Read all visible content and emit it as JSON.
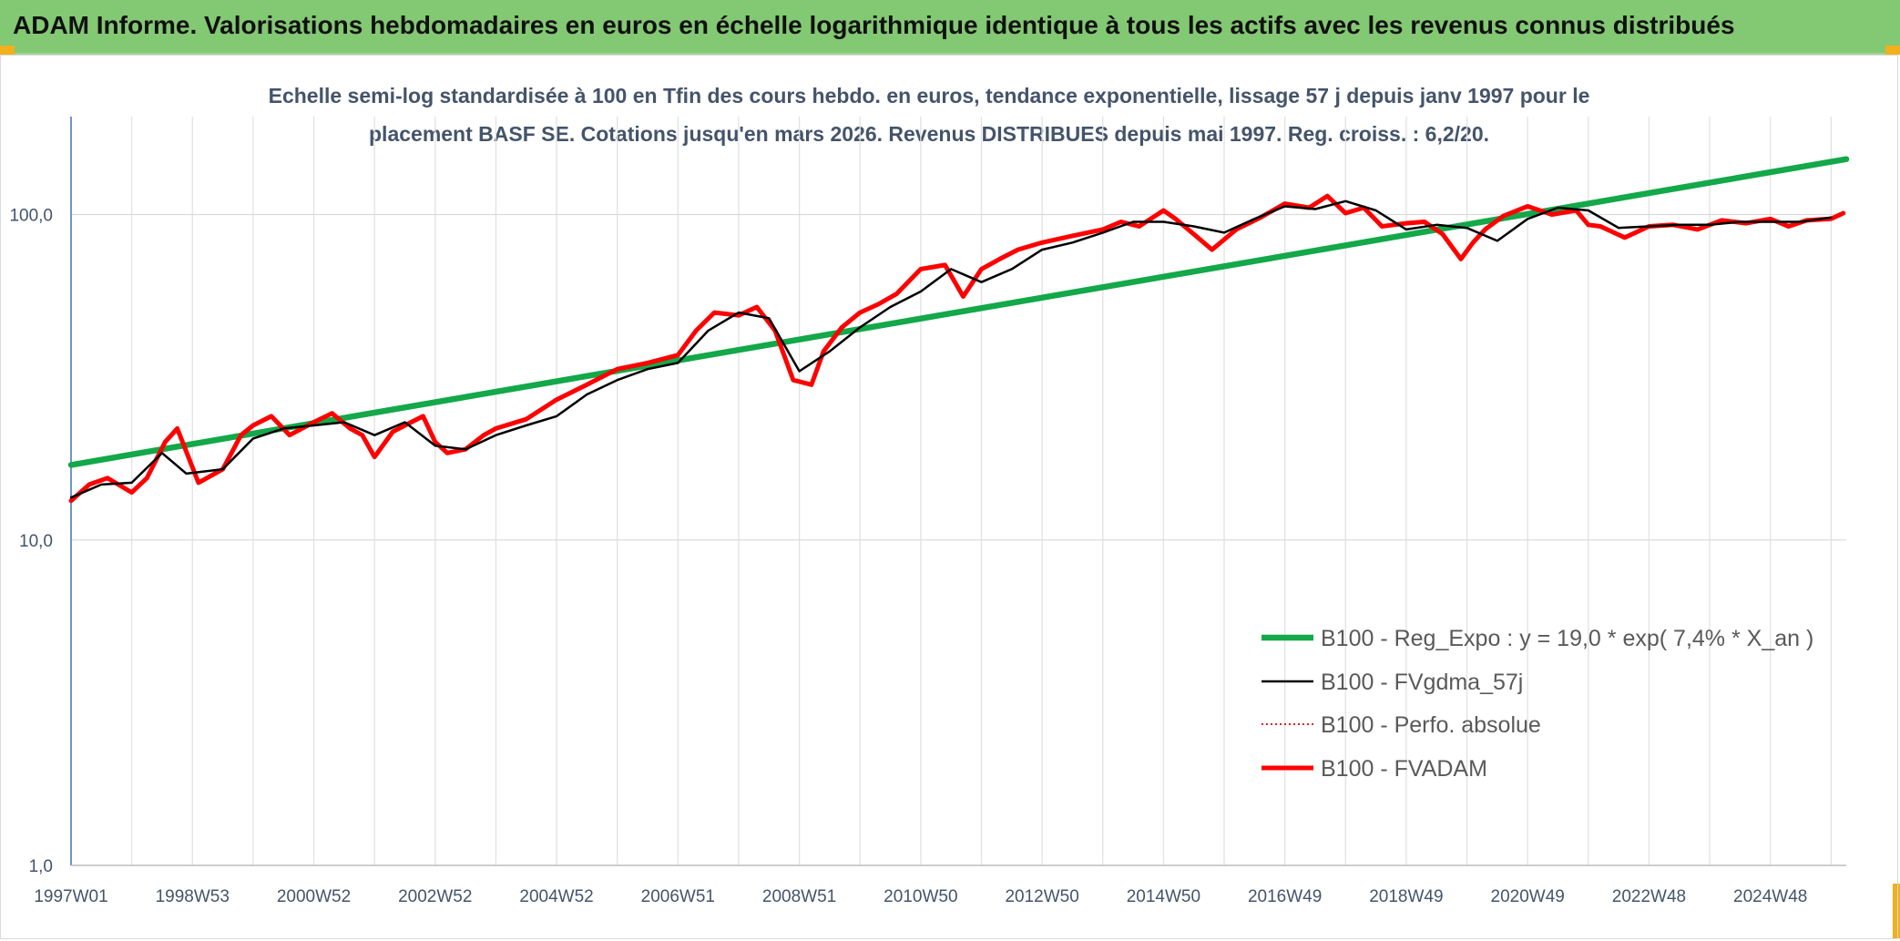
{
  "header": {
    "title": "ADAM Informe. Valorisations hebdomadaires en euros en échelle logarithmique identique à tous les actifs avec les revenus connus distribués"
  },
  "chart_data": {
    "type": "line",
    "title_line1": "Echelle semi-log standardisée à 100 en Tfin des cours hebdo. en euros, tendance exponentielle, lissage 57 j depuis janv 1997 pour le",
    "title_line2": "placement BASF SE. Cotations jusqu'en mars 2026. Revenus DISTRIBUES depuis mai 1997. Reg. croiss. : 6,2/20.",
    "yscale": "log",
    "ylim": [
      1,
      200
    ],
    "xlim": [
      1997.0,
      2026.25
    ],
    "grid": true,
    "y_ticks": [
      {
        "value": 1,
        "label": "1,0"
      },
      {
        "value": 10,
        "label": "10,0"
      },
      {
        "value": 100,
        "label": "100,0"
      }
    ],
    "x_ticks": [
      {
        "value": 1997.0,
        "label": "1997W01"
      },
      {
        "value": 1999.0,
        "label": "1998W53"
      },
      {
        "value": 2001.0,
        "label": "2000W52"
      },
      {
        "value": 2003.0,
        "label": "2002W52"
      },
      {
        "value": 2005.0,
        "label": "2004W52"
      },
      {
        "value": 2007.0,
        "label": "2006W51"
      },
      {
        "value": 2009.0,
        "label": "2008W51"
      },
      {
        "value": 2011.0,
        "label": "2010W50"
      },
      {
        "value": 2013.0,
        "label": "2012W50"
      },
      {
        "value": 2015.0,
        "label": "2014W50"
      },
      {
        "value": 2017.0,
        "label": "2016W49"
      },
      {
        "value": 2019.0,
        "label": "2018W49"
      },
      {
        "value": 2021.0,
        "label": "2020W49"
      },
      {
        "value": 2023.0,
        "label": "2022W48"
      },
      {
        "value": 2025.0,
        "label": "2024W48"
      }
    ],
    "legend_position": "bottom-right",
    "series": [
      {
        "name": "B100 - Reg_Expo : y = 19,0 * exp( 7,4% * X_an )",
        "color": "#13a849",
        "style": "solid-thick",
        "x": [
          1997.0,
          2026.25
        ],
        "y": [
          17,
          148
        ]
      },
      {
        "name": "B100 - FVgdma_57j",
        "color": "#000000",
        "style": "solid",
        "x": [
          1997.0,
          1997.5,
          1998.0,
          1998.5,
          1998.9,
          1999.5,
          2000.0,
          2000.5,
          2001.0,
          2001.5,
          2002.0,
          2002.5,
          2003.0,
          2003.5,
          2004.0,
          2004.5,
          2005.0,
          2005.5,
          2006.0,
          2006.5,
          2007.0,
          2007.5,
          2008.0,
          2008.5,
          2009.0,
          2009.5,
          2010.0,
          2010.5,
          2011.0,
          2011.5,
          2012.0,
          2012.5,
          2013.0,
          2013.5,
          2014.0,
          2014.5,
          2015.0,
          2015.5,
          2016.0,
          2016.5,
          2017.0,
          2017.5,
          2018.0,
          2018.5,
          2019.0,
          2019.5,
          2020.0,
          2020.5,
          2021.0,
          2021.5,
          2022.0,
          2022.5,
          2023.0,
          2023.5,
          2024.0,
          2024.5,
          2025.0,
          2025.5,
          2026.0
        ],
        "y": [
          13.5,
          14.8,
          15.0,
          18.5,
          16.0,
          16.5,
          20.5,
          22.0,
          22.5,
          23.0,
          21.0,
          23.0,
          19.5,
          19.0,
          21.0,
          22.5,
          24.0,
          28.0,
          31.0,
          33.5,
          35.0,
          44.0,
          50.0,
          48.0,
          33.0,
          38.0,
          45.0,
          52.0,
          58.0,
          68.0,
          62.0,
          68.0,
          78.0,
          82.0,
          88.0,
          95.0,
          95.0,
          92.0,
          88.0,
          97.0,
          106.0,
          104.0,
          110.0,
          103.0,
          90.0,
          93.0,
          91.0,
          83.0,
          97.0,
          105.0,
          103.0,
          91.0,
          92.0,
          93.0,
          93.0,
          95.0,
          95.0,
          95.0,
          98.0
        ]
      },
      {
        "name": "B100 - Perfo. absolue",
        "color": "#e02020",
        "style": "dotted",
        "x": [],
        "y": []
      },
      {
        "name": "B100 - FVADAM",
        "color": "#ff0000",
        "style": "solid-thick",
        "x": [
          1997.0,
          1997.3,
          1997.6,
          1998.0,
          1998.25,
          1998.55,
          1998.75,
          1999.1,
          1999.5,
          1999.8,
          2000.0,
          2000.3,
          2000.6,
          2001.0,
          2001.3,
          2001.6,
          2001.8,
          2002.0,
          2002.3,
          2002.5,
          2002.8,
          2003.0,
          2003.2,
          2003.5,
          2003.8,
          2004.0,
          2004.5,
          2005.0,
          2005.5,
          2006.0,
          2006.5,
          2007.0,
          2007.3,
          2007.6,
          2008.0,
          2008.3,
          2008.6,
          2008.9,
          2009.2,
          2009.4,
          2009.7,
          2010.0,
          2010.3,
          2010.6,
          2011.0,
          2011.4,
          2011.7,
          2012.0,
          2012.3,
          2012.6,
          2013.0,
          2013.5,
          2014.0,
          2014.3,
          2014.6,
          2015.0,
          2015.2,
          2015.5,
          2015.8,
          2016.2,
          2016.6,
          2017.0,
          2017.4,
          2017.7,
          2018.0,
          2018.3,
          2018.6,
          2019.0,
          2019.3,
          2019.6,
          2019.9,
          2020.1,
          2020.3,
          2020.6,
          2021.0,
          2021.4,
          2021.8,
          2022.0,
          2022.2,
          2022.6,
          2023.0,
          2023.4,
          2023.8,
          2024.2,
          2024.6,
          2025.0,
          2025.3,
          2025.6,
          2026.0,
          2026.2
        ],
        "y": [
          13.2,
          14.8,
          15.5,
          14.0,
          15.5,
          20.0,
          22.0,
          15.0,
          16.5,
          21.0,
          22.5,
          24.0,
          21.0,
          23.0,
          24.5,
          22.0,
          21.0,
          18.0,
          21.5,
          22.5,
          24.0,
          20.0,
          18.5,
          19.0,
          21.0,
          22.0,
          23.5,
          27.0,
          30.0,
          33.5,
          35.0,
          37.0,
          44.0,
          50.0,
          49.0,
          52.0,
          44.0,
          31.0,
          30.0,
          38.0,
          45.0,
          50.0,
          53.0,
          57.0,
          68.0,
          70.0,
          56.0,
          68.0,
          73.0,
          78.0,
          82.0,
          86.0,
          90.0,
          95.0,
          92.0,
          103.0,
          97.0,
          87.0,
          78.0,
          90.0,
          98.0,
          108.0,
          105.0,
          114.0,
          101.0,
          105.0,
          92.0,
          94.0,
          95.0,
          87.0,
          73.0,
          82.0,
          90.0,
          99.0,
          106.0,
          100.0,
          103.0,
          93.0,
          92.0,
          85.0,
          92.0,
          93.0,
          90.0,
          96.0,
          94.0,
          97.0,
          92.0,
          96.0,
          97.0,
          101.0
        ]
      }
    ]
  }
}
